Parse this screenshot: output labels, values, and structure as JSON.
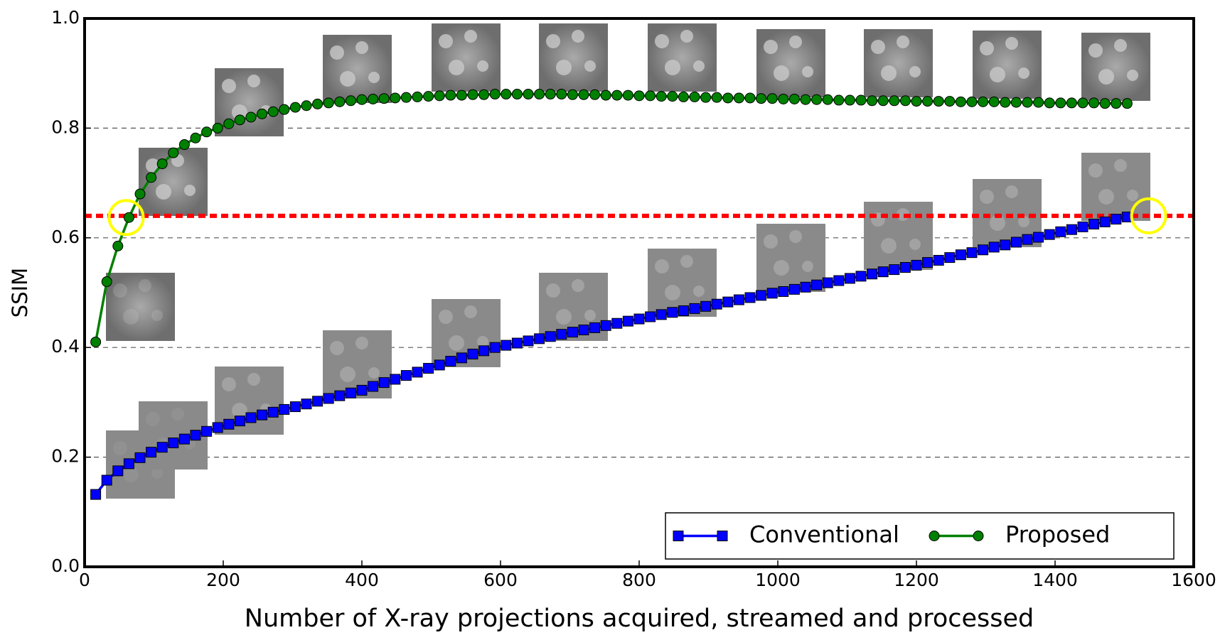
{
  "chart_data": {
    "type": "line",
    "xlabel": "Number of X-ray projections acquired, streamed and processed",
    "ylabel": "SSIM",
    "xlim": [
      0,
      1600
    ],
    "ylim": [
      0,
      1
    ],
    "xticks": [
      0,
      200,
      400,
      600,
      800,
      1000,
      1200,
      1400,
      1600
    ],
    "yticks": [
      {
        "value": 0,
        "label": "0.0"
      },
      0.2,
      0.4,
      0.6,
      0.8,
      {
        "value": 1,
        "label": "1.0"
      }
    ],
    "grid": true,
    "legend": "lower right",
    "x": [
      16,
      32,
      48,
      64,
      80,
      96,
      112,
      128,
      144,
      160,
      176,
      192,
      208,
      224,
      240,
      256,
      272,
      288,
      304,
      320,
      336,
      352,
      368,
      384,
      400,
      416,
      432,
      448,
      464,
      480,
      496,
      512,
      528,
      544,
      560,
      576,
      592,
      608,
      624,
      640,
      656,
      672,
      688,
      704,
      720,
      736,
      752,
      768,
      784,
      800,
      816,
      832,
      848,
      864,
      880,
      896,
      912,
      928,
      944,
      960,
      976,
      992,
      1008,
      1024,
      1040,
      1056,
      1072,
      1088,
      1104,
      1120,
      1136,
      1152,
      1168,
      1184,
      1200,
      1216,
      1232,
      1248,
      1264,
      1280,
      1296,
      1312,
      1328,
      1344,
      1360,
      1376,
      1392,
      1408,
      1424,
      1440,
      1456,
      1472,
      1488,
      1504
    ],
    "series": [
      {
        "name": "Conventional",
        "color": "#0000ff",
        "marker": "square",
        "values": [
          0.132,
          0.158,
          0.175,
          0.188,
          0.199,
          0.209,
          0.218,
          0.226,
          0.233,
          0.24,
          0.247,
          0.254,
          0.26,
          0.266,
          0.272,
          0.277,
          0.282,
          0.287,
          0.292,
          0.297,
          0.302,
          0.307,
          0.312,
          0.317,
          0.322,
          0.329,
          0.336,
          0.342,
          0.349,
          0.355,
          0.362,
          0.368,
          0.375,
          0.381,
          0.388,
          0.394,
          0.4,
          0.404,
          0.408,
          0.412,
          0.416,
          0.42,
          0.424,
          0.428,
          0.432,
          0.436,
          0.44,
          0.444,
          0.448,
          0.452,
          0.456,
          0.46,
          0.464,
          0.467,
          0.471,
          0.475,
          0.479,
          0.483,
          0.487,
          0.491,
          0.495,
          0.499,
          0.502,
          0.506,
          0.51,
          0.514,
          0.518,
          0.522,
          0.526,
          0.53,
          0.534,
          0.538,
          0.542,
          0.546,
          0.55,
          0.555,
          0.559,
          0.564,
          0.569,
          0.573,
          0.578,
          0.583,
          0.587,
          0.592,
          0.597,
          0.601,
          0.606,
          0.611,
          0.615,
          0.62,
          0.625,
          0.629,
          0.634,
          0.638
        ]
      },
      {
        "name": "Proposed",
        "color": "#008000",
        "marker": "circle",
        "values": [
          0.41,
          0.52,
          0.585,
          0.637,
          0.68,
          0.71,
          0.735,
          0.755,
          0.77,
          0.782,
          0.793,
          0.8,
          0.808,
          0.815,
          0.82,
          0.826,
          0.83,
          0.834,
          0.838,
          0.841,
          0.844,
          0.846,
          0.848,
          0.85,
          0.852,
          0.853,
          0.854,
          0.855,
          0.856,
          0.857,
          0.858,
          0.859,
          0.86,
          0.86,
          0.861,
          0.861,
          0.862,
          0.862,
          0.862,
          0.862,
          0.862,
          0.862,
          0.862,
          0.861,
          0.861,
          0.861,
          0.86,
          0.86,
          0.86,
          0.859,
          0.859,
          0.858,
          0.858,
          0.857,
          0.857,
          0.856,
          0.856,
          0.855,
          0.855,
          0.855,
          0.854,
          0.854,
          0.853,
          0.853,
          0.852,
          0.852,
          0.852,
          0.851,
          0.851,
          0.851,
          0.85,
          0.85,
          0.85,
          0.85,
          0.849,
          0.849,
          0.849,
          0.849,
          0.848,
          0.848,
          0.848,
          0.848,
          0.847,
          0.847,
          0.847,
          0.847,
          0.846,
          0.846,
          0.846,
          0.846,
          0.846,
          0.845,
          0.845,
          0.845
        ]
      }
    ],
    "threshold": {
      "value": 0.64,
      "color": "#ff0000"
    },
    "highlights": {
      "color": "#ffff00",
      "points": [
        {
          "x": 60,
          "y": 0.637
        },
        {
          "x": 1535,
          "y": 0.64
        }
      ]
    }
  }
}
